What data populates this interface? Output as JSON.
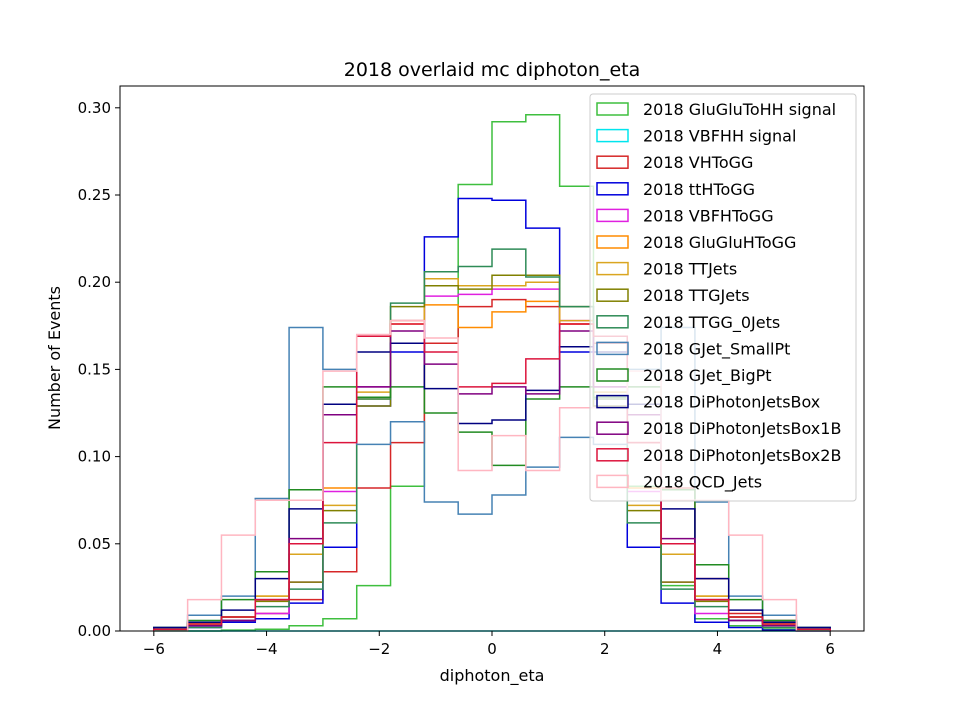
{
  "chart_data": {
    "type": "histogram-step",
    "title": "2018 overlaid mc diphoton_eta",
    "xlabel": "diphoton_eta",
    "ylabel": "Number of Events",
    "xlim": [
      -6.6,
      6.6
    ],
    "ylim": [
      0,
      0.3125
    ],
    "x_ticks": [
      -6,
      -4,
      -2,
      0,
      2,
      4,
      6
    ],
    "y_ticks": [
      "0.00",
      "0.05",
      "0.10",
      "0.15",
      "0.20",
      "0.25",
      "0.30"
    ],
    "bin_edges": [
      -6.0,
      -5.4,
      -4.8,
      -4.2,
      -3.6,
      -3.0,
      -2.4,
      -1.8,
      -1.2,
      -0.6,
      0.0,
      0.6,
      1.2,
      1.8,
      2.4,
      3.0,
      3.6,
      4.2,
      4.8,
      5.4,
      6.0
    ],
    "legend_position": "top-right",
    "series": [
      {
        "name": "2018 GluGluToHH signal",
        "color": "#3fbf3f",
        "values": [
          0.0,
          0.0,
          0.0005,
          0.001,
          0.003,
          0.007,
          0.026,
          0.083,
          0.165,
          0.256,
          0.292,
          0.296,
          0.255,
          0.165,
          0.083,
          0.026,
          0.007,
          0.003,
          0.001,
          0.0
        ]
      },
      {
        "name": "2018 VBFHH signal",
        "color": "#00e5ee",
        "values": [
          0.0,
          0.0,
          0.0,
          0.0,
          0.0,
          0.0,
          0.0,
          0.0,
          0.0,
          0.0,
          0.0,
          0.0,
          0.0,
          0.0,
          0.0,
          0.0,
          0.0,
          0.0,
          0.0,
          0.0
        ]
      },
      {
        "name": "2018 VHToGG",
        "color": "#d62728",
        "values": [
          0.001,
          0.003,
          0.006,
          0.01,
          0.018,
          0.034,
          0.082,
          0.108,
          0.165,
          0.186,
          0.19,
          0.186,
          0.176,
          0.165,
          0.108,
          0.082,
          0.03,
          0.01,
          0.006,
          0.001
        ]
      },
      {
        "name": "2018 ttHToGG",
        "color": "#0000dd",
        "values": [
          0.0005,
          0.002,
          0.005,
          0.007,
          0.016,
          0.048,
          0.129,
          0.16,
          0.226,
          0.248,
          0.247,
          0.231,
          0.16,
          0.129,
          0.048,
          0.016,
          0.005,
          0.002,
          0.0005,
          0.0
        ]
      },
      {
        "name": "2018 VBFHToGG",
        "color": "#e020e0",
        "values": [
          0.001,
          0.003,
          0.006,
          0.01,
          0.028,
          0.08,
          0.14,
          0.178,
          0.192,
          0.193,
          0.196,
          0.196,
          0.178,
          0.14,
          0.08,
          0.028,
          0.01,
          0.006,
          0.003,
          0.001
        ]
      },
      {
        "name": "2018 GluGluHToGG",
        "color": "#ff8c00",
        "values": [
          0.001,
          0.004,
          0.008,
          0.02,
          0.044,
          0.082,
          0.133,
          0.176,
          0.187,
          0.174,
          0.183,
          0.189,
          0.176,
          0.133,
          0.082,
          0.044,
          0.02,
          0.008,
          0.004,
          0.001
        ]
      },
      {
        "name": "2018 TTJets",
        "color": "#daa520",
        "values": [
          0.001,
          0.005,
          0.008,
          0.02,
          0.044,
          0.072,
          0.137,
          0.178,
          0.202,
          0.198,
          0.198,
          0.2,
          0.178,
          0.137,
          0.072,
          0.044,
          0.02,
          0.008,
          0.005,
          0.001
        ]
      },
      {
        "name": "2018 TTGJets",
        "color": "#808000",
        "values": [
          0.001,
          0.004,
          0.008,
          0.017,
          0.028,
          0.069,
          0.129,
          0.186,
          0.198,
          0.196,
          0.204,
          0.204,
          0.186,
          0.129,
          0.069,
          0.028,
          0.017,
          0.008,
          0.004,
          0.001
        ]
      },
      {
        "name": "2018 TTGG_0Jets",
        "color": "#2e8b57",
        "values": [
          0.0005,
          0.002,
          0.006,
          0.014,
          0.024,
          0.062,
          0.133,
          0.188,
          0.206,
          0.209,
          0.219,
          0.203,
          0.186,
          0.133,
          0.062,
          0.024,
          0.014,
          0.006,
          0.002,
          0.0005
        ]
      },
      {
        "name": "2018 GJet_SmallPt",
        "color": "#4682b4",
        "values": [
          0.002,
          0.009,
          0.02,
          0.076,
          0.174,
          0.15,
          0.107,
          0.12,
          0.074,
          0.067,
          0.078,
          0.094,
          0.111,
          0.107,
          0.15,
          0.174,
          0.074,
          0.02,
          0.009,
          0.002
        ]
      },
      {
        "name": "2018 GJet_BigPt",
        "color": "#228b22",
        "values": [
          0.002,
          0.006,
          0.018,
          0.034,
          0.081,
          0.14,
          0.134,
          0.14,
          0.125,
          0.114,
          0.095,
          0.133,
          0.14,
          0.134,
          0.14,
          0.081,
          0.038,
          0.018,
          0.006,
          0.002
        ]
      },
      {
        "name": "2018 DiPhotonJetsBox",
        "color": "#000080",
        "values": [
          0.002,
          0.005,
          0.012,
          0.03,
          0.07,
          0.13,
          0.16,
          0.165,
          0.139,
          0.119,
          0.121,
          0.138,
          0.163,
          0.16,
          0.13,
          0.07,
          0.03,
          0.012,
          0.005,
          0.002
        ]
      },
      {
        "name": "2018 DiPhotonJetsBox1B",
        "color": "#800080",
        "values": [
          0.001,
          0.003,
          0.006,
          0.018,
          0.053,
          0.124,
          0.14,
          0.172,
          0.153,
          0.136,
          0.14,
          0.136,
          0.172,
          0.14,
          0.124,
          0.053,
          0.018,
          0.006,
          0.003,
          0.001
        ]
      },
      {
        "name": "2018 DiPhotonJetsBox2B",
        "color": "#dc143c",
        "values": [
          0.001,
          0.004,
          0.008,
          0.018,
          0.05,
          0.108,
          0.169,
          0.176,
          0.16,
          0.14,
          0.142,
          0.156,
          0.176,
          0.169,
          0.108,
          0.05,
          0.018,
          0.008,
          0.004,
          0.001
        ]
      },
      {
        "name": "2018 QCD_Jets",
        "color": "#ffb6c1",
        "values": [
          0.0,
          0.018,
          0.055,
          0.075,
          0.075,
          0.149,
          0.17,
          0.178,
          0.168,
          0.092,
          0.112,
          0.092,
          0.128,
          0.128,
          0.149,
          0.075,
          0.075,
          0.055,
          0.018,
          0.0
        ]
      }
    ]
  }
}
